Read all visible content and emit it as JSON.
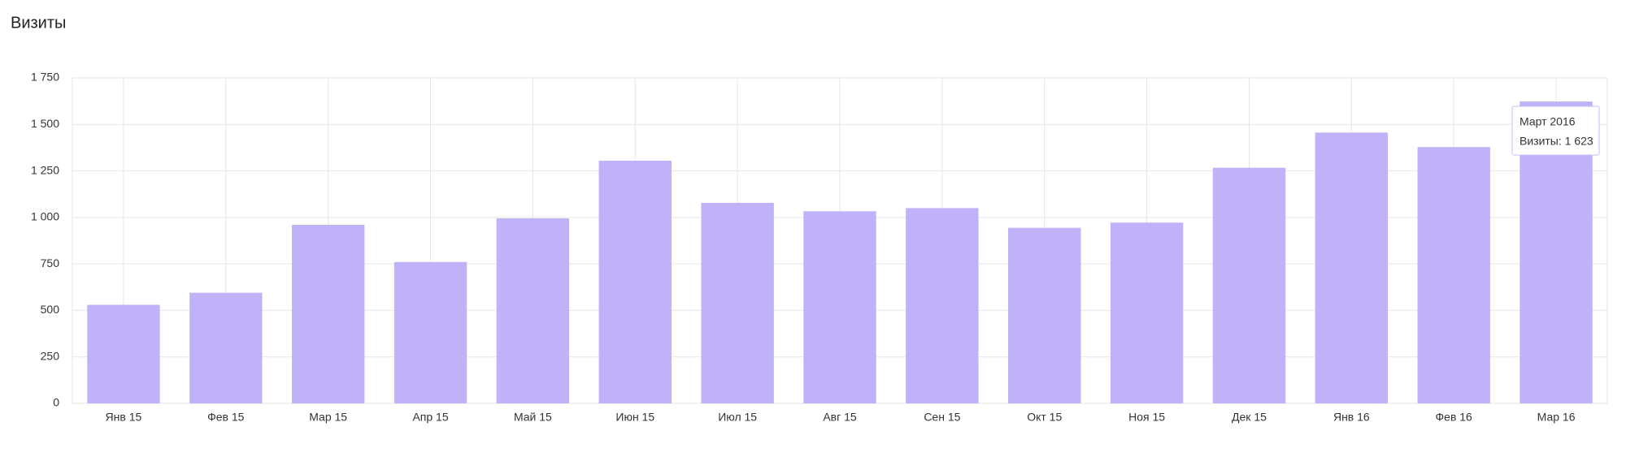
{
  "chart_data": {
    "type": "bar",
    "title": "Визиты",
    "categories": [
      "Янв 15",
      "Фев 15",
      "Мар 15",
      "Апр 15",
      "Май 15",
      "Июн 15",
      "Июл 15",
      "Авг 15",
      "Сен 15",
      "Окт 15",
      "Ноя 15",
      "Дек 15",
      "Янв 16",
      "Фев 16",
      "Мар 16"
    ],
    "values": [
      530,
      595,
      960,
      760,
      995,
      1305,
      1078,
      1033,
      1050,
      944,
      972,
      1267,
      1456,
      1378,
      1623
    ],
    "color": "#c0b1f8",
    "ylim": [
      0,
      1750
    ],
    "yticks": [
      0,
      250,
      500,
      750,
      {
        "value": 1000,
        "label": "1 000"
      },
      {
        "value": 1250,
        "label": "1 250"
      },
      {
        "value": 1500,
        "label": "1 500"
      },
      {
        "value": 1750,
        "label": "1 750"
      }
    ],
    "grid": true,
    "tooltip": {
      "title": "Март 2016",
      "text": "Визиты: 1 623"
    }
  }
}
